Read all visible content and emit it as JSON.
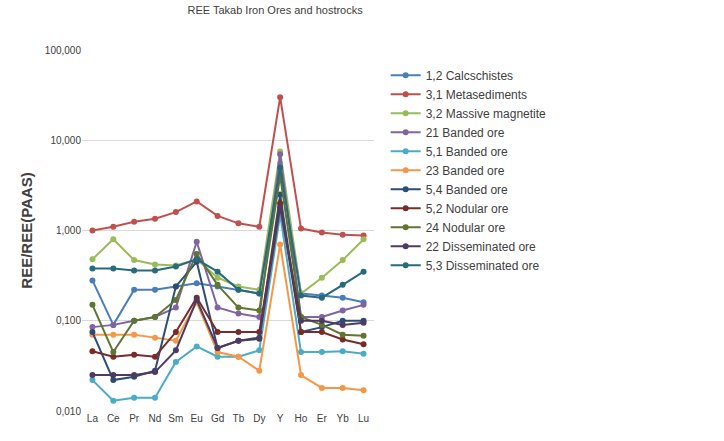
{
  "chart_data": {
    "type": "line",
    "title": "REE Takab Iron Ores and hostrocks",
    "y_label": "REE/REE(PAAS)",
    "log": "y",
    "grid": true,
    "legend": "right",
    "marker": "circle",
    "categories": [
      "La",
      "Ce",
      "Pr",
      "Nd",
      "Sm",
      "Eu",
      "Gd",
      "Tb",
      "Dy",
      "Y",
      "Ho",
      "Er",
      "Yb",
      "Lu"
    ],
    "ylim": [
      0.01,
      100
    ],
    "yticks": [
      {
        "value": 0.01,
        "label": "0,010"
      },
      {
        "value": 0.1,
        "label": "0,100"
      },
      {
        "value": 1,
        "label": "1,000"
      },
      {
        "value": 10,
        "label": "10,000"
      },
      {
        "value": 100,
        "label": "100,000"
      }
    ],
    "series": [
      {
        "name": "1,2 Calcschistes",
        "color": "#4a7ebb",
        "values": [
          0.28,
          0.09,
          0.22,
          0.22,
          0.24,
          0.26,
          0.24,
          0.22,
          0.2,
          5.5,
          0.2,
          0.19,
          0.18,
          0.16
        ]
      },
      {
        "name": "3,1 Metasediments",
        "color": "#c0504d",
        "values": [
          1.0,
          1.1,
          1.25,
          1.35,
          1.6,
          2.1,
          1.45,
          1.2,
          1.1,
          30,
          1.05,
          0.95,
          0.9,
          0.88
        ]
      },
      {
        "name": "3,2 Massive magnetite",
        "color": "#9bbb59",
        "values": [
          0.48,
          0.8,
          0.47,
          0.42,
          0.41,
          0.48,
          0.3,
          0.24,
          0.22,
          7.5,
          0.2,
          0.3,
          0.47,
          0.8
        ]
      },
      {
        "name": "21 Banded ore",
        "color": "#8064a2",
        "values": [
          0.085,
          0.09,
          0.1,
          0.11,
          0.14,
          0.75,
          0.14,
          0.12,
          0.11,
          7,
          0.11,
          0.11,
          0.13,
          0.15
        ]
      },
      {
        "name": "5,1 Banded ore",
        "color": "#4bacc6",
        "values": [
          0.022,
          0.013,
          0.014,
          0.014,
          0.035,
          0.052,
          0.04,
          0.04,
          0.047,
          1.5,
          0.045,
          0.045,
          0.046,
          0.043
        ]
      },
      {
        "name": "23 Banded ore",
        "color": "#f79646",
        "values": [
          0.07,
          0.07,
          0.07,
          0.065,
          0.06,
          0.16,
          0.045,
          0.04,
          0.028,
          0.7,
          0.025,
          0.018,
          0.018,
          0.017
        ]
      },
      {
        "name": "5,4 Banded ore",
        "color": "#2c4d75",
        "values": [
          0.075,
          0.022,
          0.024,
          0.028,
          0.24,
          0.45,
          0.05,
          0.06,
          0.065,
          2.5,
          0.075,
          0.085,
          0.1,
          0.1
        ]
      },
      {
        "name": "5,2 Nodular ore",
        "color": "#772c2a",
        "values": [
          0.046,
          0.04,
          0.042,
          0.04,
          0.075,
          0.18,
          0.075,
          0.075,
          0.075,
          2,
          0.075,
          0.075,
          0.062,
          0.055
        ]
      },
      {
        "name": "24 Nodular ore",
        "color": "#5f7530",
        "values": [
          0.15,
          0.045,
          0.1,
          0.11,
          0.17,
          0.55,
          0.25,
          0.14,
          0.13,
          4,
          0.11,
          0.09,
          0.07,
          0.068
        ]
      },
      {
        "name": "22 Disseminated ore",
        "color": "#4d3b62",
        "values": [
          0.025,
          0.025,
          0.025,
          0.027,
          0.047,
          0.17,
          0.05,
          0.06,
          0.063,
          1.8,
          0.1,
          0.1,
          0.09,
          0.095
        ]
      },
      {
        "name": "5,3 Disseminated ore",
        "color": "#276a7c",
        "values": [
          0.38,
          0.38,
          0.36,
          0.36,
          0.4,
          0.48,
          0.35,
          0.22,
          0.2,
          5,
          0.19,
          0.18,
          0.25,
          0.35
        ]
      }
    ]
  }
}
